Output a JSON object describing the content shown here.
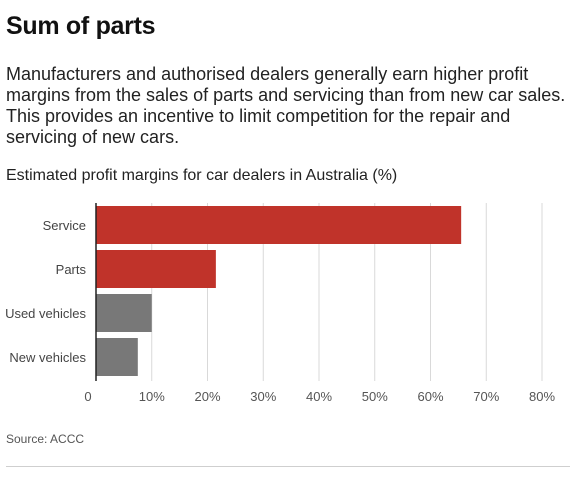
{
  "header": {
    "title": "Sum of parts",
    "subtitle": "Manufacturers and authorised dealers generally earn higher profit margins from the sales of parts and servicing than from new car sales. This provides an incentive to limit competition for the repair and servicing of new cars."
  },
  "chart_data": {
    "type": "bar",
    "orientation": "horizontal",
    "title": "Estimated profit margins for car dealers in Australia (%)",
    "categories": [
      "Service",
      "Parts",
      "Used vehicles",
      "New vehicles"
    ],
    "values": [
      65.5,
      21.5,
      10,
      7.5
    ],
    "colors": [
      "#c0332a",
      "#c0332a",
      "#787878",
      "#787878"
    ],
    "xlim": [
      0,
      80
    ],
    "xticks": [
      0,
      10,
      20,
      30,
      40,
      50,
      60,
      70,
      80
    ],
    "xtick_labels": [
      "0",
      "10%",
      "20%",
      "30%",
      "40%",
      "50%",
      "60%",
      "70%",
      "80%"
    ],
    "grid": true
  },
  "footer": {
    "source": "Source: ACCC"
  }
}
